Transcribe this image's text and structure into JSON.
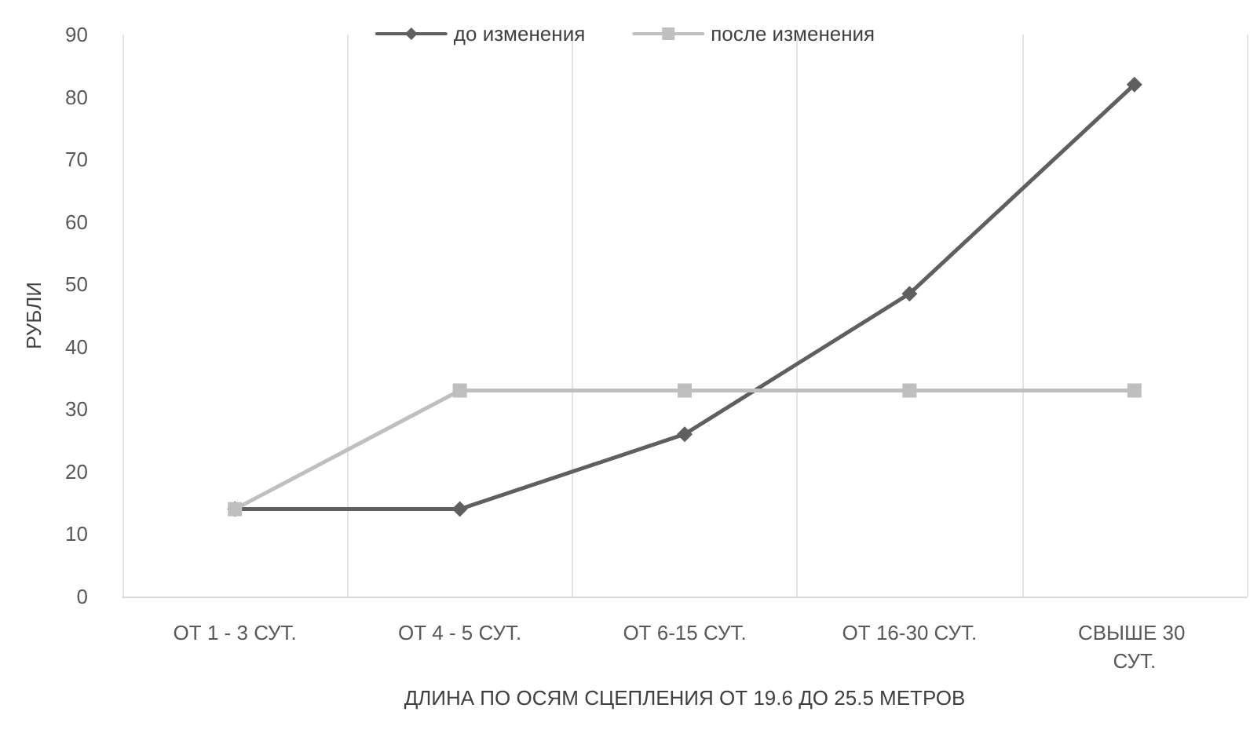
{
  "chart_data": {
    "type": "line",
    "xlabel": "ДЛИНА ПО ОСЯМ СЦЕПЛЕНИЯ ОТ 19.6 ДО 25.5 МЕТРОВ",
    "ylabel": "РУБЛИ",
    "categories": [
      "ОТ 1 - 3 СУТ.",
      "ОТ 4 - 5 СУТ.",
      "ОТ 6-15 СУТ.",
      "ОТ 16-30 СУТ.",
      "СВЫШЕ 30 СУТ."
    ],
    "series": [
      {
        "name": "до изменения",
        "color": "#5f5f5f",
        "marker": "diamond",
        "values": [
          14,
          14,
          26,
          48.5,
          82
        ]
      },
      {
        "name": "после изменения",
        "color": "#bfbfbf",
        "marker": "square",
        "values": [
          14,
          33,
          33,
          33,
          33
        ]
      }
    ],
    "ylim": [
      0,
      90
    ],
    "yticks": [
      0,
      10,
      20,
      30,
      40,
      50,
      60,
      70,
      80,
      90
    ],
    "grid": "x",
    "legend": "top",
    "line_style": "solid"
  }
}
